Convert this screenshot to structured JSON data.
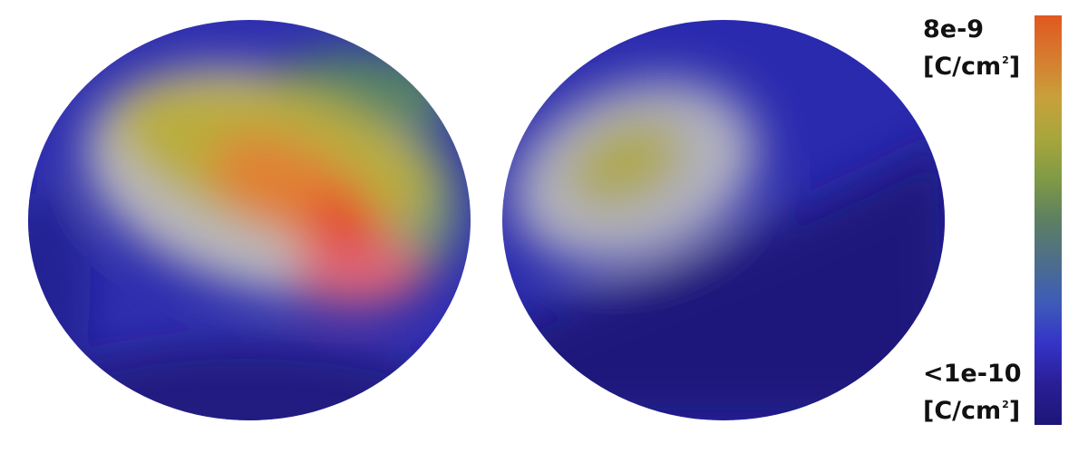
{
  "colorbar": {
    "max_value": "8e-9",
    "min_value": "<1e-10",
    "unit_open": "[C/cm",
    "unit_exp": "2",
    "unit_close": "]",
    "colors_top_to_bottom": [
      "#E0581F",
      "#D77A2E",
      "#C9A03A",
      "#A7A63C",
      "#7F9A45",
      "#5D7F62",
      "#4D6E8A",
      "#3E5CB8",
      "#3534C8",
      "#2A1E96",
      "#1D1577"
    ]
  },
  "left_sphere_colors": {
    "background": "#2F2FB0",
    "blob_white": "#C9C7C0",
    "blob_yellow": "#B9AD3E",
    "blob_orange": "#E18034",
    "blob_red": "#E5462A",
    "blob_pink": "#E25A6F",
    "blob_green": "#58895E",
    "dark_blue": "#1C1878"
  },
  "right_sphere_colors": {
    "background": "#2A2AAF",
    "blob_white": "#B8B8C4",
    "blob_yellow": "#AEA84A",
    "dark_blue": "#1E1778"
  }
}
